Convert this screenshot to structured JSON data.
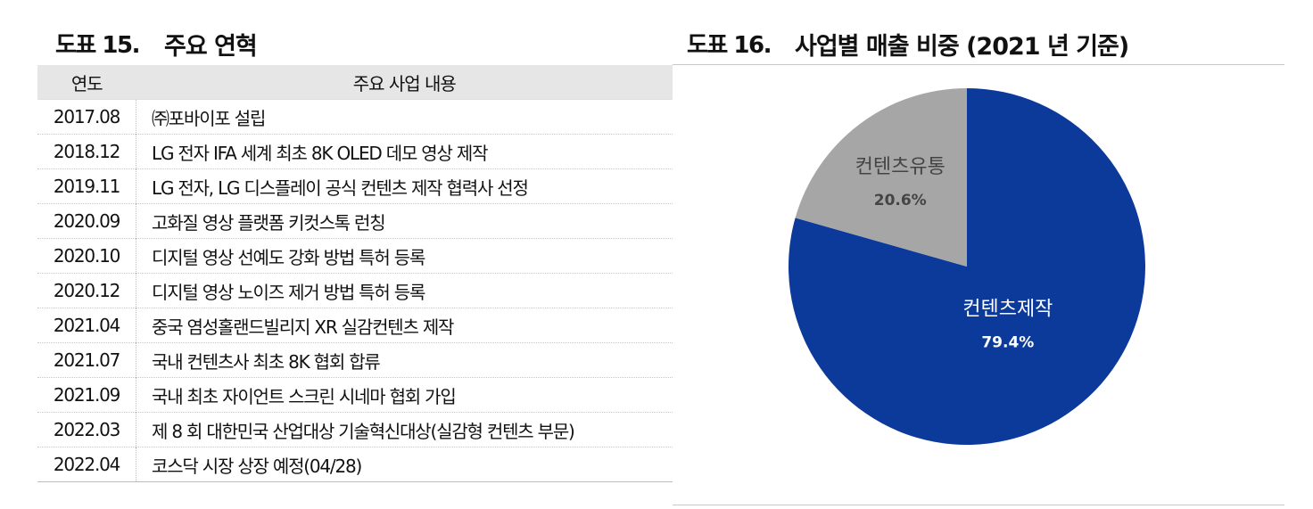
{
  "left": {
    "fig_no": "도표 15.",
    "title": "주요 연혁",
    "table": {
      "headers": [
        "연도",
        "주요 사업 내용"
      ],
      "rows": [
        {
          "year": "2017.08",
          "desc": "㈜포바이포 설립"
        },
        {
          "year": "2018.12",
          "desc": "LG 전자 IFA 세계 최초 8K OLED 데모 영상 제작"
        },
        {
          "year": "2019.11",
          "desc": "LG 전자, LG 디스플레이 공식 컨텐츠 제작 협력사 선정"
        },
        {
          "year": "2020.09",
          "desc": "고화질 영상 플랫폼 키컷스톡 런칭"
        },
        {
          "year": "2020.10",
          "desc": "디지털 영상 선예도 강화 방법 특허 등록"
        },
        {
          "year": "2020.12",
          "desc": "디지털 영상 노이즈 제거 방법 특허 등록"
        },
        {
          "year": "2021.04",
          "desc": "중국 염성홀랜드빌리지 XR 실감컨텐츠 제작"
        },
        {
          "year": "2021.07",
          "desc": "국내 컨텐츠사 최초 8K 협회 합류"
        },
        {
          "year": "2021.09",
          "desc": "국내 최초 자이언트 스크린 시네마 협회 가입"
        },
        {
          "year": "2022.03",
          "desc": "제 8 회 대한민국 산업대상 기술혁신대상(실감형 컨텐츠 부문)"
        },
        {
          "year": "2022.04",
          "desc": "코스닥 시장 상장 예정(04/28)"
        }
      ]
    }
  },
  "right": {
    "fig_no": "도표 16.",
    "title": "사업별 매출 비중 (2021 년 기준)"
  },
  "chart_data": {
    "type": "pie",
    "title": "사업별 매출 비중 (2021 년 기준)",
    "slices": [
      {
        "label": "컨텐츠제작",
        "value": 79.4,
        "value_label": "79.4%",
        "color": "#0b3a9b"
      },
      {
        "label": "컨텐츠유통",
        "value": 20.6,
        "value_label": "20.6%",
        "color": "#a6a6a6"
      }
    ]
  }
}
